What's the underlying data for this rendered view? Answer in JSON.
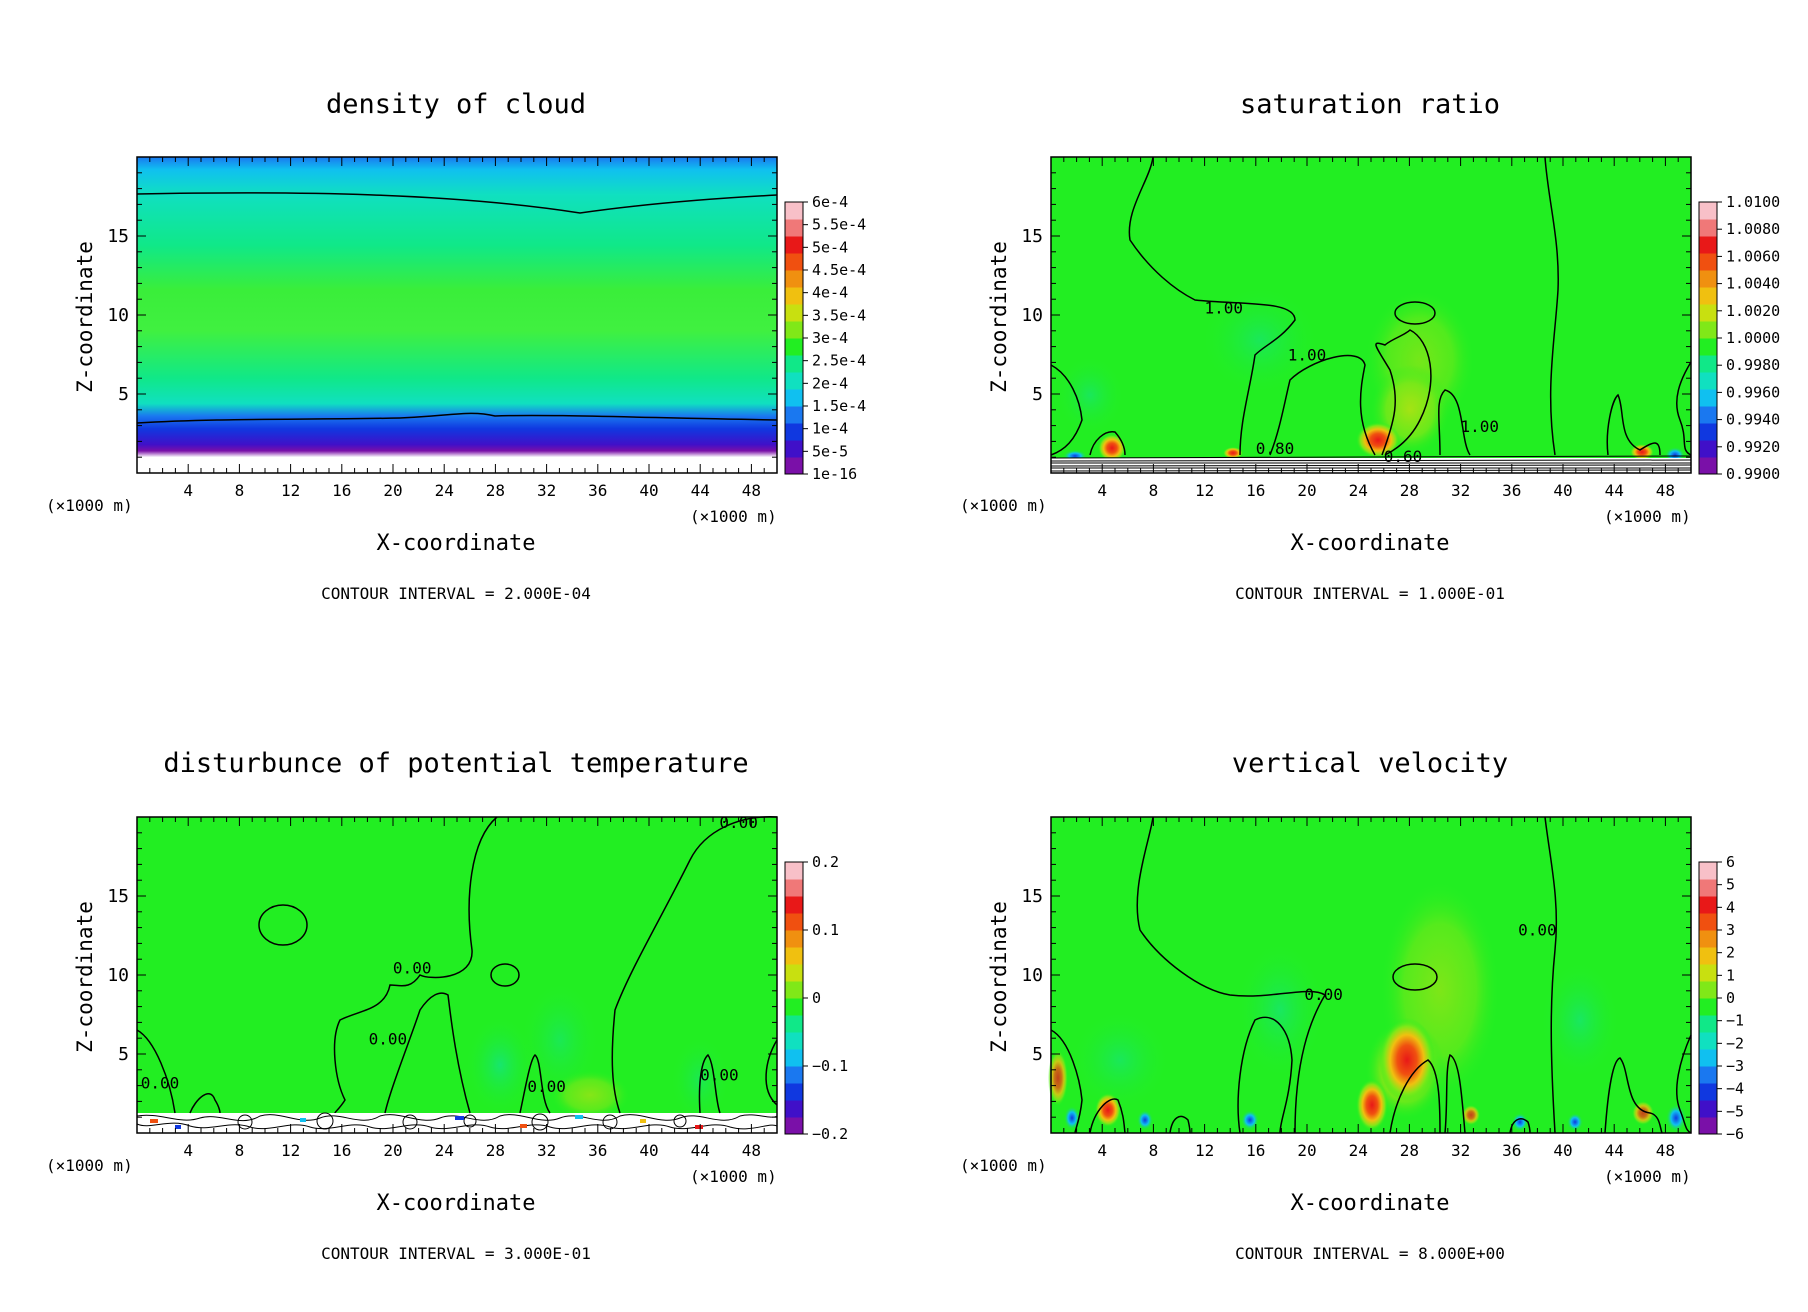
{
  "colorscale": [
    "#7a10a8",
    "#4010c8",
    "#1038e0",
    "#1a78f0",
    "#10c0f0",
    "#10e0c0",
    "#10e888",
    "#22ee22",
    "#80e818",
    "#c8e010",
    "#f0c010",
    "#f09010",
    "#f05010",
    "#e81818",
    "#f07878",
    "#f8c0c8"
  ],
  "chart_data": [
    {
      "type": "heatmap",
      "title": "density of cloud",
      "xlabel": "X-coordinate",
      "ylabel": "Z-coordinate",
      "x_unit": "(×1000 m)",
      "y_unit": "(×1000 m)",
      "xlim": [
        0,
        50
      ],
      "ylim": [
        0,
        20
      ],
      "xticks": [
        4,
        8,
        12,
        16,
        20,
        24,
        28,
        32,
        36,
        40,
        44,
        48
      ],
      "yticks": [
        5,
        10,
        15
      ],
      "colorbar_labels": [
        "6e-4",
        "5.5e-4",
        "5e-4",
        "4.5e-4",
        "4e-4",
        "3.5e-4",
        "3e-4",
        "2.5e-4",
        "2e-4",
        "1.5e-4",
        "1e-4",
        "5e-5",
        "1e-16"
      ],
      "colorbar_range": [
        0,
        0.0006
      ],
      "contour_labels": [],
      "footer": "CONTOUR INTERVAL = 2.000E-04"
    },
    {
      "type": "heatmap",
      "title": "saturation ratio",
      "xlabel": "X-coordinate",
      "ylabel": "Z-coordinate",
      "x_unit": "(×1000 m)",
      "y_unit": "(×1000 m)",
      "xlim": [
        0,
        50
      ],
      "ylim": [
        0,
        20
      ],
      "xticks": [
        4,
        8,
        12,
        16,
        20,
        24,
        28,
        32,
        36,
        40,
        44,
        48
      ],
      "yticks": [
        5,
        10,
        15
      ],
      "colorbar_labels": [
        "1.0100",
        "1.0080",
        "1.0060",
        "1.0040",
        "1.0020",
        "1.0000",
        "0.9980",
        "0.9960",
        "0.9940",
        "0.9920",
        "0.9900"
      ],
      "colorbar_range": [
        0.99,
        1.01
      ],
      "contour_labels": [
        {
          "text": "1.00",
          "x": 13.5,
          "y": 10.3
        },
        {
          "text": "1.00",
          "x": 20,
          "y": 7.3
        },
        {
          "text": "1.00",
          "x": 33.5,
          "y": 2.8
        },
        {
          "text": "0.80",
          "x": 17.5,
          "y": 1.4
        },
        {
          "text": "0.60",
          "x": 27.5,
          "y": 0.9
        }
      ],
      "footer": "CONTOUR INTERVAL = 1.000E-01"
    },
    {
      "type": "heatmap",
      "title": "disturbunce of potential temperature",
      "xlabel": "X-coordinate",
      "ylabel": "Z-coordinate",
      "x_unit": "(×1000 m)",
      "y_unit": "(×1000 m)",
      "xlim": [
        0,
        50
      ],
      "ylim": [
        0,
        20
      ],
      "xticks": [
        4,
        8,
        12,
        16,
        20,
        24,
        28,
        32,
        36,
        40,
        44,
        48
      ],
      "yticks": [
        5,
        10,
        15
      ],
      "colorbar_labels": [
        "0.2",
        "0.1",
        "0",
        "−0.1",
        "−0.2"
      ],
      "colorbar_range": [
        -0.2,
        0.2
      ],
      "contour_labels": [
        {
          "text": "0.00",
          "x": 47,
          "y": 19.5
        },
        {
          "text": "0.00",
          "x": 21.5,
          "y": 10.3
        },
        {
          "text": "0.00",
          "x": 19.6,
          "y": 5.8
        },
        {
          "text": "0.00",
          "x": 1.8,
          "y": 3.0
        },
        {
          "text": "0.00",
          "x": 32,
          "y": 2.8
        },
        {
          "text": "0.00",
          "x": 45.5,
          "y": 3.5
        }
      ],
      "footer": "CONTOUR INTERVAL = 3.000E-01"
    },
    {
      "type": "heatmap",
      "title": "vertical velocity",
      "xlabel": "X-coordinate",
      "ylabel": "Z-coordinate",
      "x_unit": "(×1000 m)",
      "y_unit": "(×1000 m)",
      "xlim": [
        0,
        50
      ],
      "ylim": [
        0,
        20
      ],
      "xticks": [
        4,
        8,
        12,
        16,
        20,
        24,
        28,
        32,
        36,
        40,
        44,
        48
      ],
      "yticks": [
        5,
        10,
        15
      ],
      "colorbar_labels": [
        "6",
        "5",
        "4",
        "3",
        "2",
        "1",
        "0",
        "−1",
        "−2",
        "−3",
        "−4",
        "−5",
        "−6"
      ],
      "colorbar_range": [
        -6,
        6
      ],
      "contour_labels": [
        {
          "text": "0.00",
          "x": 21.3,
          "y": 8.6
        },
        {
          "text": "0.00",
          "x": 38,
          "y": 12.7
        }
      ],
      "footer": "CONTOUR INTERVAL = 8.000E+00"
    }
  ]
}
